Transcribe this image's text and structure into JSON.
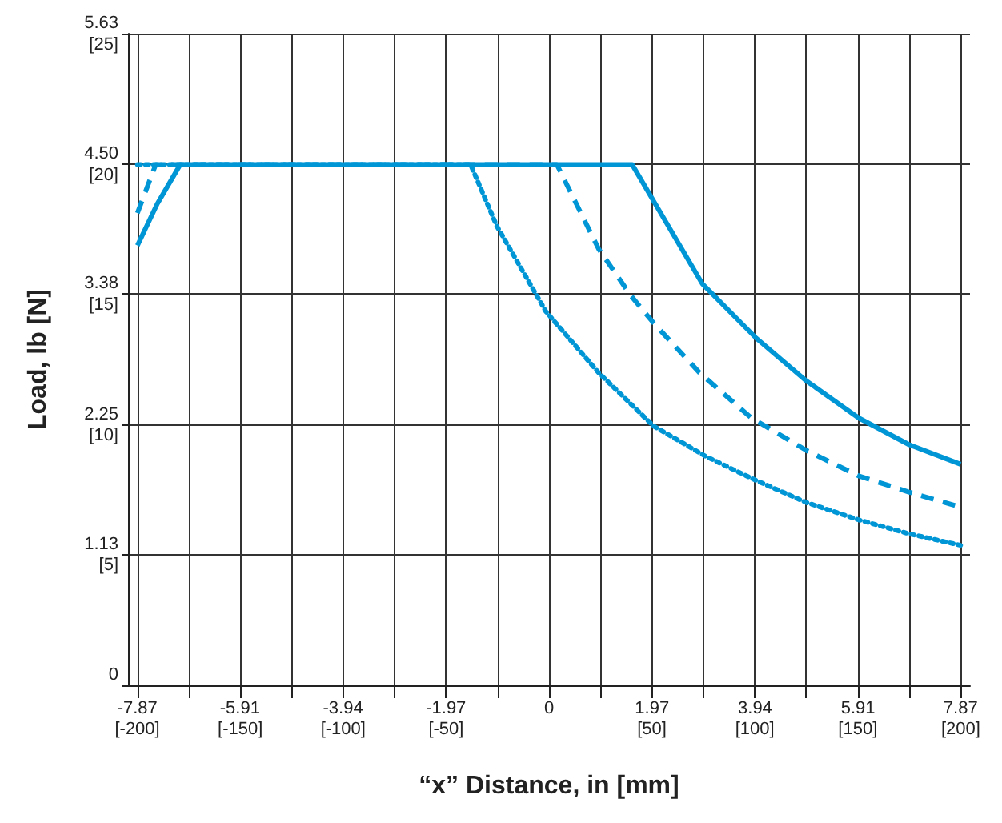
{
  "chart_data": {
    "type": "line",
    "xlabel": "“x” Distance, in [mm]",
    "ylabel": "Load, lb [N]",
    "xlim": [
      -8.05,
      8.05
    ],
    "xticks": [
      -7.87,
      {
        "value": -6.89,
        "label": null
      },
      -5.91,
      {
        "value": -4.92,
        "label": null
      },
      -3.94,
      {
        "value": -2.95,
        "label": null
      },
      -1.97,
      {
        "value": -0.98,
        "label": null
      },
      0,
      {
        "value": 0.98,
        "label": null
      },
      1.97,
      {
        "value": 2.95,
        "label": null
      },
      3.94,
      {
        "value": 4.92,
        "label": null
      },
      5.91,
      {
        "value": 6.89,
        "label": null
      },
      7.87
    ],
    "x2lim": [
      -204.5,
      204.5
    ],
    "x2ticks": [
      {
        "value": -200,
        "label": "[-200]"
      },
      {
        "value": -150,
        "label": "[-150]"
      },
      {
        "value": -100,
        "label": "[-100]"
      },
      {
        "value": -50,
        "label": "[-50]"
      },
      {
        "value": 50,
        "label": "[50]"
      },
      {
        "value": 100,
        "label": "[100]"
      },
      {
        "value": 150,
        "label": "[150]"
      },
      {
        "value": 200,
        "label": "[200]"
      }
    ],
    "ylim": [
      0,
      5.63
    ],
    "yticks": [
      0,
      1.13,
      2.25,
      3.38,
      {
        "value": 4.5,
        "label": "4.50"
      },
      5.63
    ],
    "y2lim": [
      0,
      25.04
    ],
    "y2ticks": [
      {
        "value": 5,
        "label": "[5]"
      },
      {
        "value": 10,
        "label": "[10]"
      },
      {
        "value": 15,
        "label": "[15]"
      },
      {
        "value": 20,
        "label": "[20]"
      },
      {
        "value": 25,
        "label": "[25]"
      }
    ],
    "grid": true,
    "marker": "none",
    "series": [
      {
        "color": "#0096d6",
        "line_style": "solid",
        "x": [
          -7.87,
          -7.49,
          -7.05,
          1.59,
          2.93,
          3.96,
          4.92,
          5.92,
          6.88,
          7.87
        ],
        "values": [
          3.8,
          4.16,
          4.5,
          4.5,
          3.47,
          3.0,
          2.63,
          2.31,
          2.08,
          1.91
        ]
      },
      {
        "color": "#0096d6",
        "line_style": "dashed",
        "x": [
          -7.87,
          -7.52,
          0.15,
          0.95,
          1.56,
          2.0,
          2.88,
          3.87,
          4.92,
          5.92,
          6.88,
          7.87
        ],
        "values": [
          4.08,
          4.5,
          4.5,
          3.77,
          3.37,
          3.13,
          2.7,
          2.31,
          2.03,
          1.81,
          1.67,
          1.54
        ]
      },
      {
        "color": "#0096d6",
        "line_style": "dotted",
        "x": [
          -7.87,
          -1.5,
          -1.0,
          -0.06,
          0.95,
          2.0,
          2.99,
          3.96,
          4.92,
          5.92,
          6.88,
          7.87
        ],
        "values": [
          4.5,
          4.5,
          3.97,
          3.23,
          2.7,
          2.24,
          1.98,
          1.77,
          1.58,
          1.43,
          1.31,
          1.21
        ]
      }
    ]
  }
}
